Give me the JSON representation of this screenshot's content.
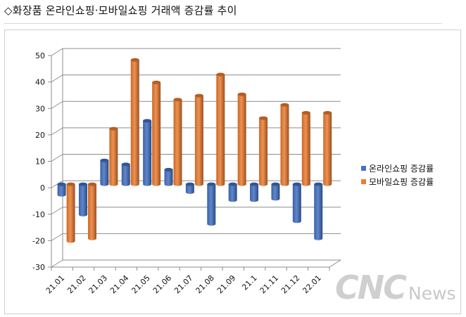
{
  "title": "◇화장품 온라인쇼핑·모바일쇼핑 거래액 증감률 추이",
  "watermark": {
    "main": "CNC",
    "sub": "News"
  },
  "colors": {
    "online": "#4472C4",
    "mobile": "#ED7D31",
    "grid": "#8c8c8c"
  },
  "chart_data": {
    "type": "bar",
    "style": "3d-cylinder",
    "categories": [
      "21.01",
      "21.02",
      "21.03",
      "21.04",
      "21.05",
      "21.06",
      "21.07",
      "21.08",
      "21.09",
      "21.1",
      "21.11",
      "21.12",
      "22.01"
    ],
    "series": [
      {
        "name": "온라인쇼핑 증감률",
        "values": [
          -4,
          -11.5,
          9,
          7.5,
          24,
          5.5,
          -3,
          -15,
          -6,
          -6,
          -5.5,
          -14,
          -20.5
        ]
      },
      {
        "name": "모바일쇼핑 증감률",
        "values": [
          -21.5,
          -20.5,
          21,
          47,
          38.5,
          32,
          33.5,
          41.5,
          34,
          25,
          30,
          27,
          27
        ]
      }
    ],
    "ylim": [
      -30,
      50
    ],
    "yticks": [
      "50",
      "40",
      "30",
      "20",
      "10",
      "0",
      "-10",
      "-20",
      "-30"
    ],
    "grid": true,
    "legend": "right"
  }
}
